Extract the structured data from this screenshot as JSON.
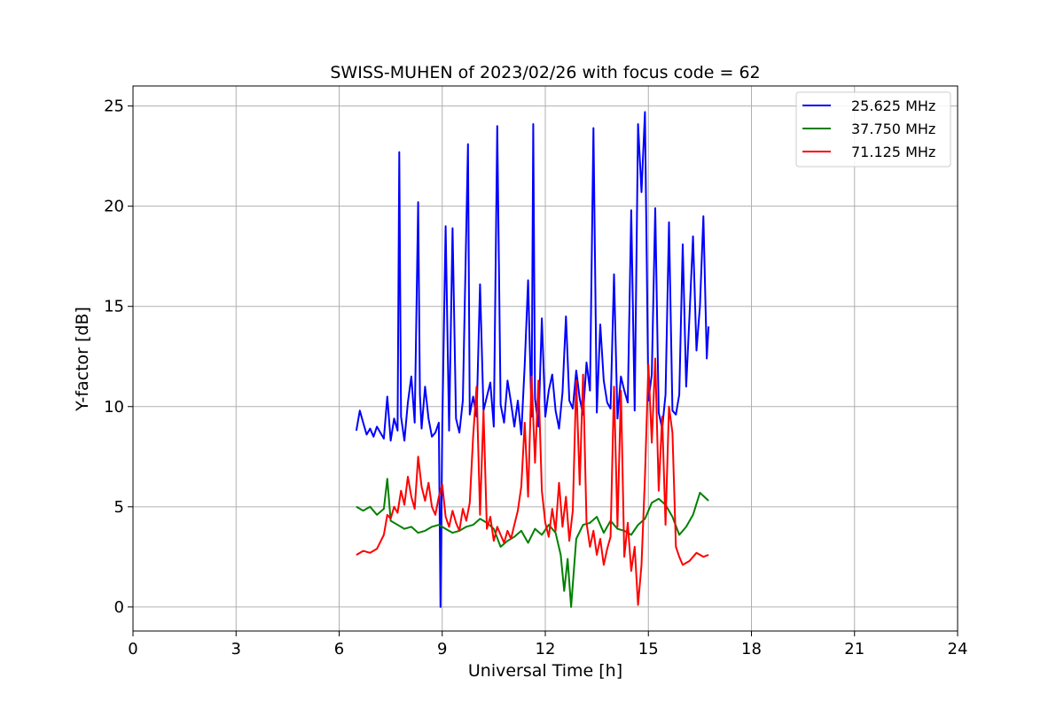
{
  "chart_data": {
    "type": "line",
    "title": "SWISS-MUHEN of 2023/02/26 with focus code = 62",
    "xlabel": "Universal Time [h]",
    "ylabel": "Y-factor [dB]",
    "xlim": [
      0,
      24
    ],
    "ylim": [
      -1.2,
      26
    ],
    "xticks": [
      0,
      3,
      6,
      9,
      12,
      15,
      18,
      21,
      24
    ],
    "yticks": [
      0,
      5,
      10,
      15,
      20,
      25
    ],
    "grid": true,
    "legend_position": "top-right",
    "series": [
      {
        "name": "25.625 MHz",
        "color": "#0000ff",
        "x": [
          6.5,
          6.6,
          6.7,
          6.8,
          6.9,
          7.0,
          7.1,
          7.2,
          7.3,
          7.4,
          7.5,
          7.6,
          7.7,
          7.75,
          7.8,
          7.9,
          8.0,
          8.1,
          8.2,
          8.3,
          8.35,
          8.4,
          8.5,
          8.6,
          8.7,
          8.8,
          8.9,
          8.95,
          9.0,
          9.1,
          9.2,
          9.3,
          9.4,
          9.5,
          9.6,
          9.75,
          9.8,
          9.9,
          10.0,
          10.1,
          10.2,
          10.3,
          10.4,
          10.5,
          10.6,
          10.7,
          10.8,
          10.9,
          11.0,
          11.1,
          11.2,
          11.3,
          11.4,
          11.5,
          11.6,
          11.65,
          11.7,
          11.8,
          11.9,
          12.0,
          12.1,
          12.2,
          12.3,
          12.4,
          12.5,
          12.6,
          12.7,
          12.8,
          12.9,
          13.0,
          13.1,
          13.2,
          13.3,
          13.4,
          13.5,
          13.6,
          13.7,
          13.8,
          13.9,
          14.0,
          14.1,
          14.2,
          14.3,
          14.4,
          14.5,
          14.6,
          14.7,
          14.8,
          14.9,
          15.0,
          15.1,
          15.2,
          15.3,
          15.4,
          15.5,
          15.6,
          15.7,
          15.8,
          15.9,
          16.0,
          16.1,
          16.2,
          16.3,
          16.4,
          16.5,
          16.6,
          16.7,
          16.75
        ],
        "values": [
          8.8,
          9.8,
          9.2,
          8.6,
          8.9,
          8.5,
          9.0,
          8.7,
          8.4,
          10.5,
          8.3,
          9.4,
          8.8,
          22.7,
          9.5,
          8.3,
          10.2,
          11.5,
          9.2,
          20.2,
          10.6,
          8.9,
          11.0,
          9.4,
          8.5,
          8.7,
          9.2,
          0.0,
          9.0,
          19.0,
          8.8,
          18.9,
          9.4,
          8.7,
          10.3,
          23.1,
          9.6,
          10.5,
          9.5,
          16.1,
          9.8,
          10.5,
          11.2,
          9.0,
          24.0,
          10.1,
          9.2,
          11.3,
          10.2,
          9.0,
          10.3,
          8.6,
          12.1,
          16.3,
          9.5,
          24.1,
          10.4,
          9.0,
          14.4,
          9.5,
          10.8,
          11.6,
          9.8,
          8.9,
          10.7,
          14.5,
          10.3,
          9.9,
          11.8,
          10.4,
          9.6,
          12.2,
          10.8,
          23.9,
          9.7,
          14.1,
          11.3,
          10.2,
          9.9,
          16.6,
          9.4,
          11.5,
          10.8,
          10.2,
          19.8,
          9.8,
          24.1,
          20.7,
          24.7,
          10.3,
          11.6,
          19.9,
          9.7,
          8.9,
          10.6,
          19.2,
          9.8,
          9.6,
          10.6,
          18.1,
          11.0,
          14.6,
          18.5,
          12.8,
          15.0,
          19.5,
          12.4,
          14.0
        ]
      },
      {
        "name": "37.750 MHz",
        "color": "#008000",
        "x": [
          6.5,
          6.7,
          6.9,
          7.1,
          7.3,
          7.4,
          7.5,
          7.7,
          7.9,
          8.1,
          8.3,
          8.5,
          8.7,
          8.9,
          9.1,
          9.3,
          9.5,
          9.7,
          9.9,
          10.1,
          10.3,
          10.5,
          10.7,
          10.9,
          11.1,
          11.3,
          11.5,
          11.7,
          11.9,
          12.1,
          12.3,
          12.45,
          12.55,
          12.65,
          12.75,
          12.9,
          13.1,
          13.3,
          13.5,
          13.7,
          13.9,
          14.1,
          14.3,
          14.5,
          14.7,
          14.9,
          15.1,
          15.3,
          15.5,
          15.7,
          15.9,
          16.1,
          16.3,
          16.5,
          16.75
        ],
        "values": [
          5.0,
          4.8,
          5.0,
          4.6,
          4.9,
          6.4,
          4.3,
          4.1,
          3.9,
          4.0,
          3.7,
          3.8,
          4.0,
          4.1,
          3.9,
          3.7,
          3.8,
          4.0,
          4.1,
          4.4,
          4.2,
          3.9,
          3.0,
          3.3,
          3.5,
          3.8,
          3.2,
          3.9,
          3.6,
          4.1,
          3.7,
          2.6,
          0.8,
          2.4,
          0.0,
          3.4,
          4.1,
          4.2,
          4.5,
          3.7,
          4.3,
          3.9,
          3.8,
          3.6,
          4.1,
          4.4,
          5.2,
          5.4,
          5.1,
          4.5,
          3.6,
          4.0,
          4.6,
          5.7,
          5.3
        ]
      },
      {
        "name": "71.125 MHz",
        "color": "#ff0000",
        "x": [
          6.5,
          6.7,
          6.9,
          7.1,
          7.3,
          7.4,
          7.5,
          7.6,
          7.7,
          7.8,
          7.9,
          8.0,
          8.1,
          8.2,
          8.3,
          8.4,
          8.5,
          8.6,
          8.7,
          8.8,
          8.9,
          9.0,
          9.1,
          9.2,
          9.3,
          9.4,
          9.5,
          9.6,
          9.7,
          9.8,
          9.9,
          10.0,
          10.1,
          10.2,
          10.3,
          10.4,
          10.5,
          10.6,
          10.7,
          10.8,
          10.9,
          11.0,
          11.1,
          11.2,
          11.3,
          11.4,
          11.5,
          11.6,
          11.7,
          11.8,
          11.9,
          12.0,
          12.1,
          12.2,
          12.3,
          12.4,
          12.5,
          12.6,
          12.7,
          12.8,
          12.9,
          13.0,
          13.1,
          13.2,
          13.3,
          13.4,
          13.5,
          13.6,
          13.7,
          13.8,
          13.9,
          14.0,
          14.1,
          14.2,
          14.3,
          14.4,
          14.5,
          14.6,
          14.7,
          14.8,
          14.9,
          15.0,
          15.1,
          15.2,
          15.3,
          15.4,
          15.5,
          15.6,
          15.7,
          15.8,
          15.9,
          16.0,
          16.2,
          16.4,
          16.6,
          16.75
        ],
        "values": [
          2.6,
          2.8,
          2.7,
          2.9,
          3.6,
          4.6,
          4.4,
          5.0,
          4.7,
          5.8,
          5.1,
          6.5,
          5.5,
          4.9,
          7.5,
          6.0,
          5.3,
          6.2,
          5.0,
          4.6,
          5.5,
          6.1,
          4.5,
          4.0,
          4.8,
          4.2,
          3.8,
          4.9,
          4.3,
          5.2,
          8.5,
          11.0,
          4.6,
          9.8,
          3.9,
          4.5,
          3.3,
          4.0,
          3.6,
          3.2,
          3.8,
          3.4,
          4.1,
          4.8,
          6.0,
          9.2,
          5.5,
          11.5,
          7.2,
          11.3,
          5.8,
          4.2,
          3.5,
          4.9,
          3.8,
          6.2,
          4.0,
          5.5,
          3.3,
          4.8,
          11.3,
          6.1,
          11.6,
          4.2,
          3.0,
          3.8,
          2.6,
          3.4,
          2.1,
          2.9,
          3.5,
          11.0,
          4.0,
          10.8,
          2.5,
          4.2,
          1.8,
          3.0,
          0.1,
          2.1,
          6.5,
          12.1,
          8.2,
          12.4,
          5.8,
          9.5,
          4.1,
          10.0,
          8.7,
          3.0,
          2.5,
          2.1,
          2.3,
          2.7,
          2.5,
          2.6
        ]
      }
    ]
  }
}
